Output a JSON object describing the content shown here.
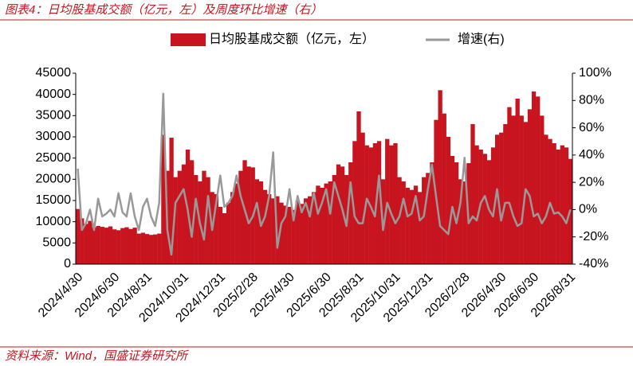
{
  "title": "图表4：日均股基成交额（亿元，左）及周度环比增速（右）",
  "source": "资料来源：Wind，国盛证券研究所",
  "chart_data": {
    "type": "bar_line",
    "categories": [
      "2024/4/30",
      null,
      null,
      null,
      null,
      null,
      null,
      null,
      null,
      "2024/6/30",
      null,
      null,
      null,
      null,
      null,
      null,
      null,
      "2024/8/31",
      null,
      null,
      null,
      null,
      null,
      null,
      null,
      null,
      "2024/10/31",
      null,
      null,
      null,
      null,
      null,
      null,
      null,
      null,
      "2024/12/31",
      null,
      null,
      null,
      null,
      null,
      null,
      null,
      "2025/2/28",
      null,
      null,
      null,
      null,
      null,
      null,
      null,
      null,
      "2025/4/30",
      null,
      null,
      null,
      null,
      null,
      null,
      null,
      null,
      "2025/6/30",
      null,
      null,
      null,
      null,
      null,
      null,
      null,
      "2025/8/31",
      null,
      null,
      null,
      null,
      null,
      null,
      null,
      null,
      "2025/10/31",
      null,
      null,
      null,
      null,
      null,
      null,
      null,
      "2025/12/31",
      null,
      null,
      null,
      null,
      null,
      null,
      null,
      null,
      "2026/2/28",
      null,
      null,
      null,
      null,
      null,
      null,
      null,
      null,
      "2026/4/30",
      null,
      null,
      null,
      null,
      null,
      null,
      null,
      "2026/6/30",
      null,
      null,
      null,
      null,
      null,
      null,
      null,
      null,
      "2026/8/31"
    ],
    "series": [
      {
        "name": "日均股基成交额（亿元，左）",
        "type": "bar",
        "color": "#c8141e",
        "values": [
          13000,
          10800,
          9500,
          10200,
          8700,
          9000,
          8800,
          8600,
          8900,
          8200,
          8000,
          8500,
          8700,
          8300,
          8600,
          7200,
          7400,
          7100,
          6900,
          7000,
          7200,
          30500,
          22000,
          29800,
          20500,
          22000,
          23500,
          27000,
          24500,
          21000,
          19500,
          22000,
          20500,
          17000,
          16500,
          13500,
          12000,
          14500,
          17000,
          19000,
          22000,
          24500,
          23000,
          22800,
          20000,
          19500,
          17500,
          16500,
          15500,
          16000,
          14500,
          13800,
          13500,
          12800,
          15000,
          14200,
          15500,
          16000,
          17000,
          18500,
          18000,
          19000,
          19500,
          21000,
          23500,
          23000,
          21000,
          24000,
          29000,
          36000,
          31000,
          28000,
          27500,
          28500,
          29000,
          20000,
          29500,
          28000,
          28500,
          20500,
          19500,
          18000,
          17500,
          18500,
          17000,
          20500,
          21500,
          24000,
          34000,
          41000,
          35500,
          30000,
          25500,
          24000,
          20000,
          19500,
          23800,
          33000,
          28000,
          27000,
          26000,
          24500,
          27500,
          30500,
          31000,
          33000,
          37000,
          35000,
          39000,
          35000,
          33500,
          36500,
          40700,
          39500,
          35000,
          30500,
          29500,
          28500,
          27000,
          28000,
          27500,
          24800
        ]
      },
      {
        "name": "增速(右)",
        "type": "line",
        "axis": "y2",
        "color": "#999999",
        "values": [
          30,
          -15,
          -10,
          0,
          -15,
          8,
          -5,
          -3,
          0,
          -5,
          12,
          -2,
          -5,
          12,
          -5,
          -15,
          2,
          8,
          -5,
          -12,
          5,
          85,
          -15,
          -33,
          5,
          10,
          15,
          0,
          -20,
          8,
          -10,
          -22,
          10,
          -15,
          5,
          25,
          2,
          5,
          10,
          25,
          10,
          0,
          -10,
          -5,
          5,
          -12,
          -5,
          10,
          42,
          -28,
          -10,
          -5,
          15,
          -8,
          10,
          -2,
          5,
          -5,
          12,
          -3,
          5,
          15,
          -3,
          20,
          10,
          0,
          -12,
          20,
          -5,
          -10,
          -10,
          8,
          2,
          -5,
          25,
          -15,
          5,
          -3,
          -10,
          -5,
          8,
          -5,
          -3,
          10,
          -8,
          -5,
          15,
          33,
          10,
          -12,
          -15,
          -18,
          2,
          -10,
          5,
          38,
          -10,
          -5,
          -8,
          5,
          10,
          0,
          -5,
          15,
          -8,
          5,
          5,
          -5,
          -12,
          -10,
          15,
          10,
          -5,
          -3,
          -10,
          -5,
          5,
          -3,
          -2,
          -5,
          -10,
          0
        ]
      }
    ],
    "ylim": [
      0,
      45000
    ],
    "yticks": [
      0,
      5000,
      10000,
      15000,
      20000,
      25000,
      30000,
      35000,
      40000,
      45000
    ],
    "y2lim": [
      -40,
      100
    ],
    "y2ticks": [
      {
        "value": -40,
        "label": "-40%"
      },
      {
        "value": -20,
        "label": "-20%"
      },
      {
        "value": 0,
        "label": "0%"
      },
      {
        "value": 20,
        "label": "20%"
      },
      {
        "value": 40,
        "label": "40%"
      },
      {
        "value": 60,
        "label": "60%"
      },
      {
        "value": 80,
        "label": "80%"
      },
      {
        "value": 100,
        "label": "100%"
      }
    ],
    "legend": "top"
  }
}
